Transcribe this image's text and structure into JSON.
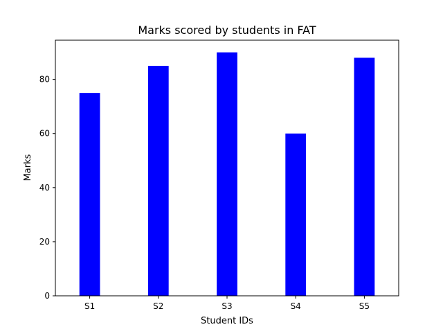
{
  "chart_data": {
    "type": "bar",
    "title": "Marks scored by students in FAT",
    "xlabel": "Student IDs",
    "ylabel": "Marks",
    "categories": [
      "S1",
      "S2",
      "S3",
      "S4",
      "S5"
    ],
    "values": [
      75,
      85,
      90,
      60,
      88
    ],
    "ylim": [
      0,
      94.5
    ],
    "yticks": [
      0,
      20,
      40,
      60,
      80
    ],
    "bar_color": "#0000ff",
    "grid": false,
    "legend": "none"
  }
}
